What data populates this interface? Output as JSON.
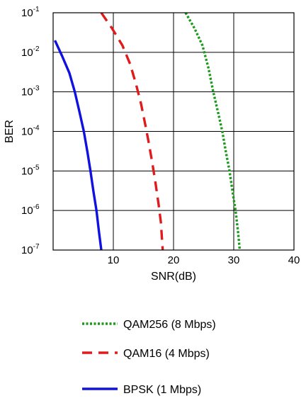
{
  "chart_data": {
    "type": "line",
    "title": "",
    "xlabel": "SNR(dB)",
    "ylabel": "BER",
    "xlim": [
      0,
      40
    ],
    "ylim": [
      1e-07,
      0.1
    ],
    "yscale": "log",
    "grid": true,
    "legend_position": "bottom",
    "x_ticks": [
      10,
      20,
      30,
      40
    ],
    "x_tick_labels": [
      "10",
      "20",
      "30",
      "40"
    ],
    "y_ticks": [
      {
        "value": 0.1,
        "base": "10",
        "exp": "-1"
      },
      {
        "value": 0.01,
        "base": "10",
        "exp": "-2"
      },
      {
        "value": 0.001,
        "base": "10",
        "exp": "-3"
      },
      {
        "value": 0.0001,
        "base": "10",
        "exp": "-4"
      },
      {
        "value": 1e-05,
        "base": "10",
        "exp": "-5"
      },
      {
        "value": 1e-06,
        "base": "10",
        "exp": "-6"
      },
      {
        "value": 1e-07,
        "base": "10",
        "exp": "-7"
      }
    ],
    "series": [
      {
        "name": "QAM256 (8 Mbps)",
        "color": "#1a9a1a",
        "style": "dotted",
        "points": [
          [
            22.0,
            0.1
          ],
          [
            23.5,
            0.04
          ],
          [
            24.8,
            0.015
          ],
          [
            25.8,
            0.004
          ],
          [
            26.6,
            0.001
          ],
          [
            27.4,
            0.0003
          ],
          [
            28.1,
            0.0001
          ],
          [
            28.7,
            3e-05
          ],
          [
            29.3,
            1e-05
          ],
          [
            29.8,
            3e-06
          ],
          [
            30.3,
            1e-06
          ],
          [
            30.7,
            3e-07
          ],
          [
            31.0,
            1e-07
          ]
        ]
      },
      {
        "name": "QAM16 (4 Mbps)",
        "color": "#e01b1b",
        "style": "dashed",
        "points": [
          [
            8.0,
            0.1
          ],
          [
            9.8,
            0.04
          ],
          [
            11.5,
            0.015
          ],
          [
            12.8,
            0.005
          ],
          [
            13.8,
            0.0015
          ],
          [
            14.6,
            0.0005
          ],
          [
            15.3,
            0.00015
          ],
          [
            15.9,
            5e-05
          ],
          [
            16.5,
            1.5e-05
          ],
          [
            17.0,
            5e-06
          ],
          [
            17.5,
            1.5e-06
          ],
          [
            17.9,
            5e-07
          ],
          [
            18.2,
            1e-07
          ]
        ]
      },
      {
        "name": "BPSK (1 Mbps)",
        "color": "#1010e0",
        "style": "solid",
        "points": [
          [
            0.3,
            0.02
          ],
          [
            1.5,
            0.008
          ],
          [
            2.7,
            0.003
          ],
          [
            3.6,
            0.001
          ],
          [
            4.4,
            0.0003
          ],
          [
            5.1,
            0.0001
          ],
          [
            5.7,
            3e-05
          ],
          [
            6.2,
            1e-05
          ],
          [
            6.7,
            3e-06
          ],
          [
            7.2,
            1e-06
          ],
          [
            7.6,
            3e-07
          ],
          [
            8.0,
            1e-07
          ]
        ]
      }
    ],
    "legend": [
      {
        "label": "QAM256 (8 Mbps)",
        "color": "#1a9a1a",
        "style": "dotted"
      },
      {
        "label": "QAM16 (4 Mbps)",
        "color": "#e01b1b",
        "style": "dashed"
      },
      {
        "label": "BPSK (1 Mbps)",
        "color": "#1010e0",
        "style": "solid"
      }
    ]
  }
}
